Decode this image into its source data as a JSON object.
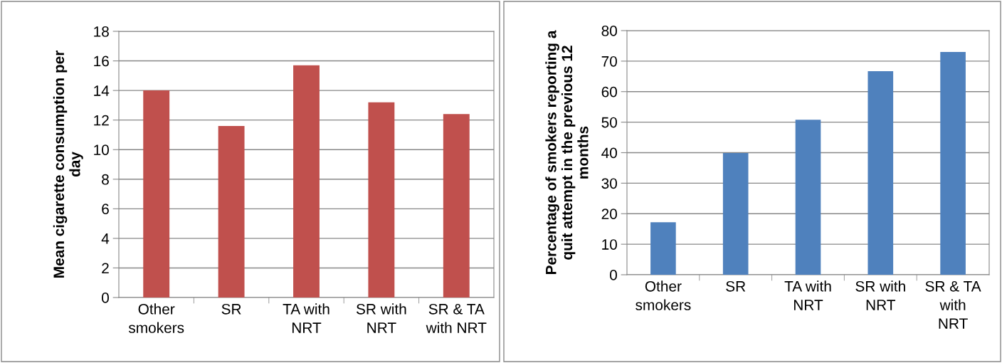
{
  "chart_data": [
    {
      "type": "bar",
      "ylabel": "Mean cigarette consumption per\nday",
      "categories": [
        "Other\nsmokers",
        "SR",
        "TA with\nNRT",
        "SR with\nNRT",
        "SR & TA\nwith NRT"
      ],
      "series": [
        {
          "color": "#c0504d",
          "values": [
            14.0,
            11.6,
            15.7,
            13.2,
            12.4
          ]
        }
      ],
      "ylim": [
        0,
        18
      ],
      "yticks": [
        0,
        2,
        4,
        6,
        8,
        10,
        12,
        14,
        16,
        18
      ],
      "grid": "y",
      "legend": false
    },
    {
      "type": "bar",
      "ylabel": "Percentage of smokers reporting a\nquit attempt in the previous 12\nmonths",
      "categories": [
        "Other\nsmokers",
        "SR",
        "TA with\nNRT",
        "SR with\nNRT",
        "SR & TA\nwith\nNRT"
      ],
      "series": [
        {
          "color": "#4f81bd",
          "values": [
            17.2,
            39.9,
            50.8,
            66.7,
            73.0
          ]
        }
      ],
      "ylim": [
        0,
        80
      ],
      "yticks": [
        0,
        10,
        20,
        30,
        40,
        50,
        60,
        70,
        80
      ],
      "grid": "y",
      "legend": false
    }
  ]
}
